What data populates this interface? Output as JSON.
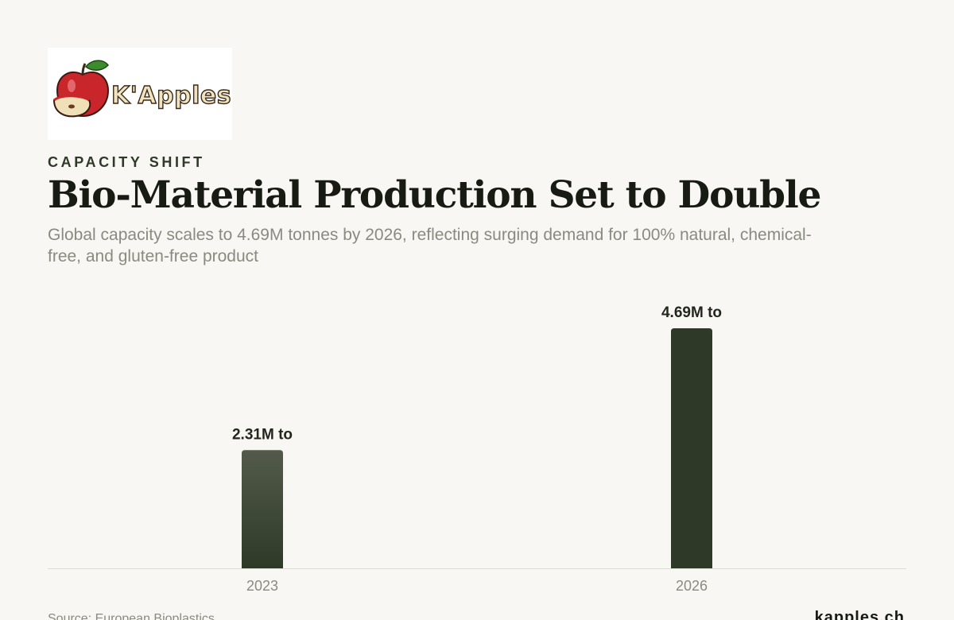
{
  "brand": {
    "logo_text": "K'Apples",
    "website": "kapples.ch"
  },
  "header": {
    "eyebrow": "CAPACITY SHIFT",
    "title": "Bio-Material Production Set to Double",
    "subtitle": "Global capacity scales to 4.69M tonnes by 2026, reflecting surging demand for 100% natural, chemical-free, and gluten-free product"
  },
  "footer": {
    "source": "Source: European Bioplastics"
  },
  "colors": {
    "background": "#f8f7f3",
    "bar_dark": "#2e3a27",
    "bar_light_top": "#535a4b",
    "baseline": "#dcdcd6"
  },
  "chart_data": {
    "type": "bar",
    "categories": [
      "2023",
      "2026"
    ],
    "values": [
      2.31,
      4.69
    ],
    "data_labels": [
      "2.31M to",
      "4.69M to"
    ],
    "title": "",
    "xlabel": "",
    "ylabel": "",
    "ylim": [
      0,
      4.69
    ],
    "grid": false,
    "legend": "none"
  }
}
